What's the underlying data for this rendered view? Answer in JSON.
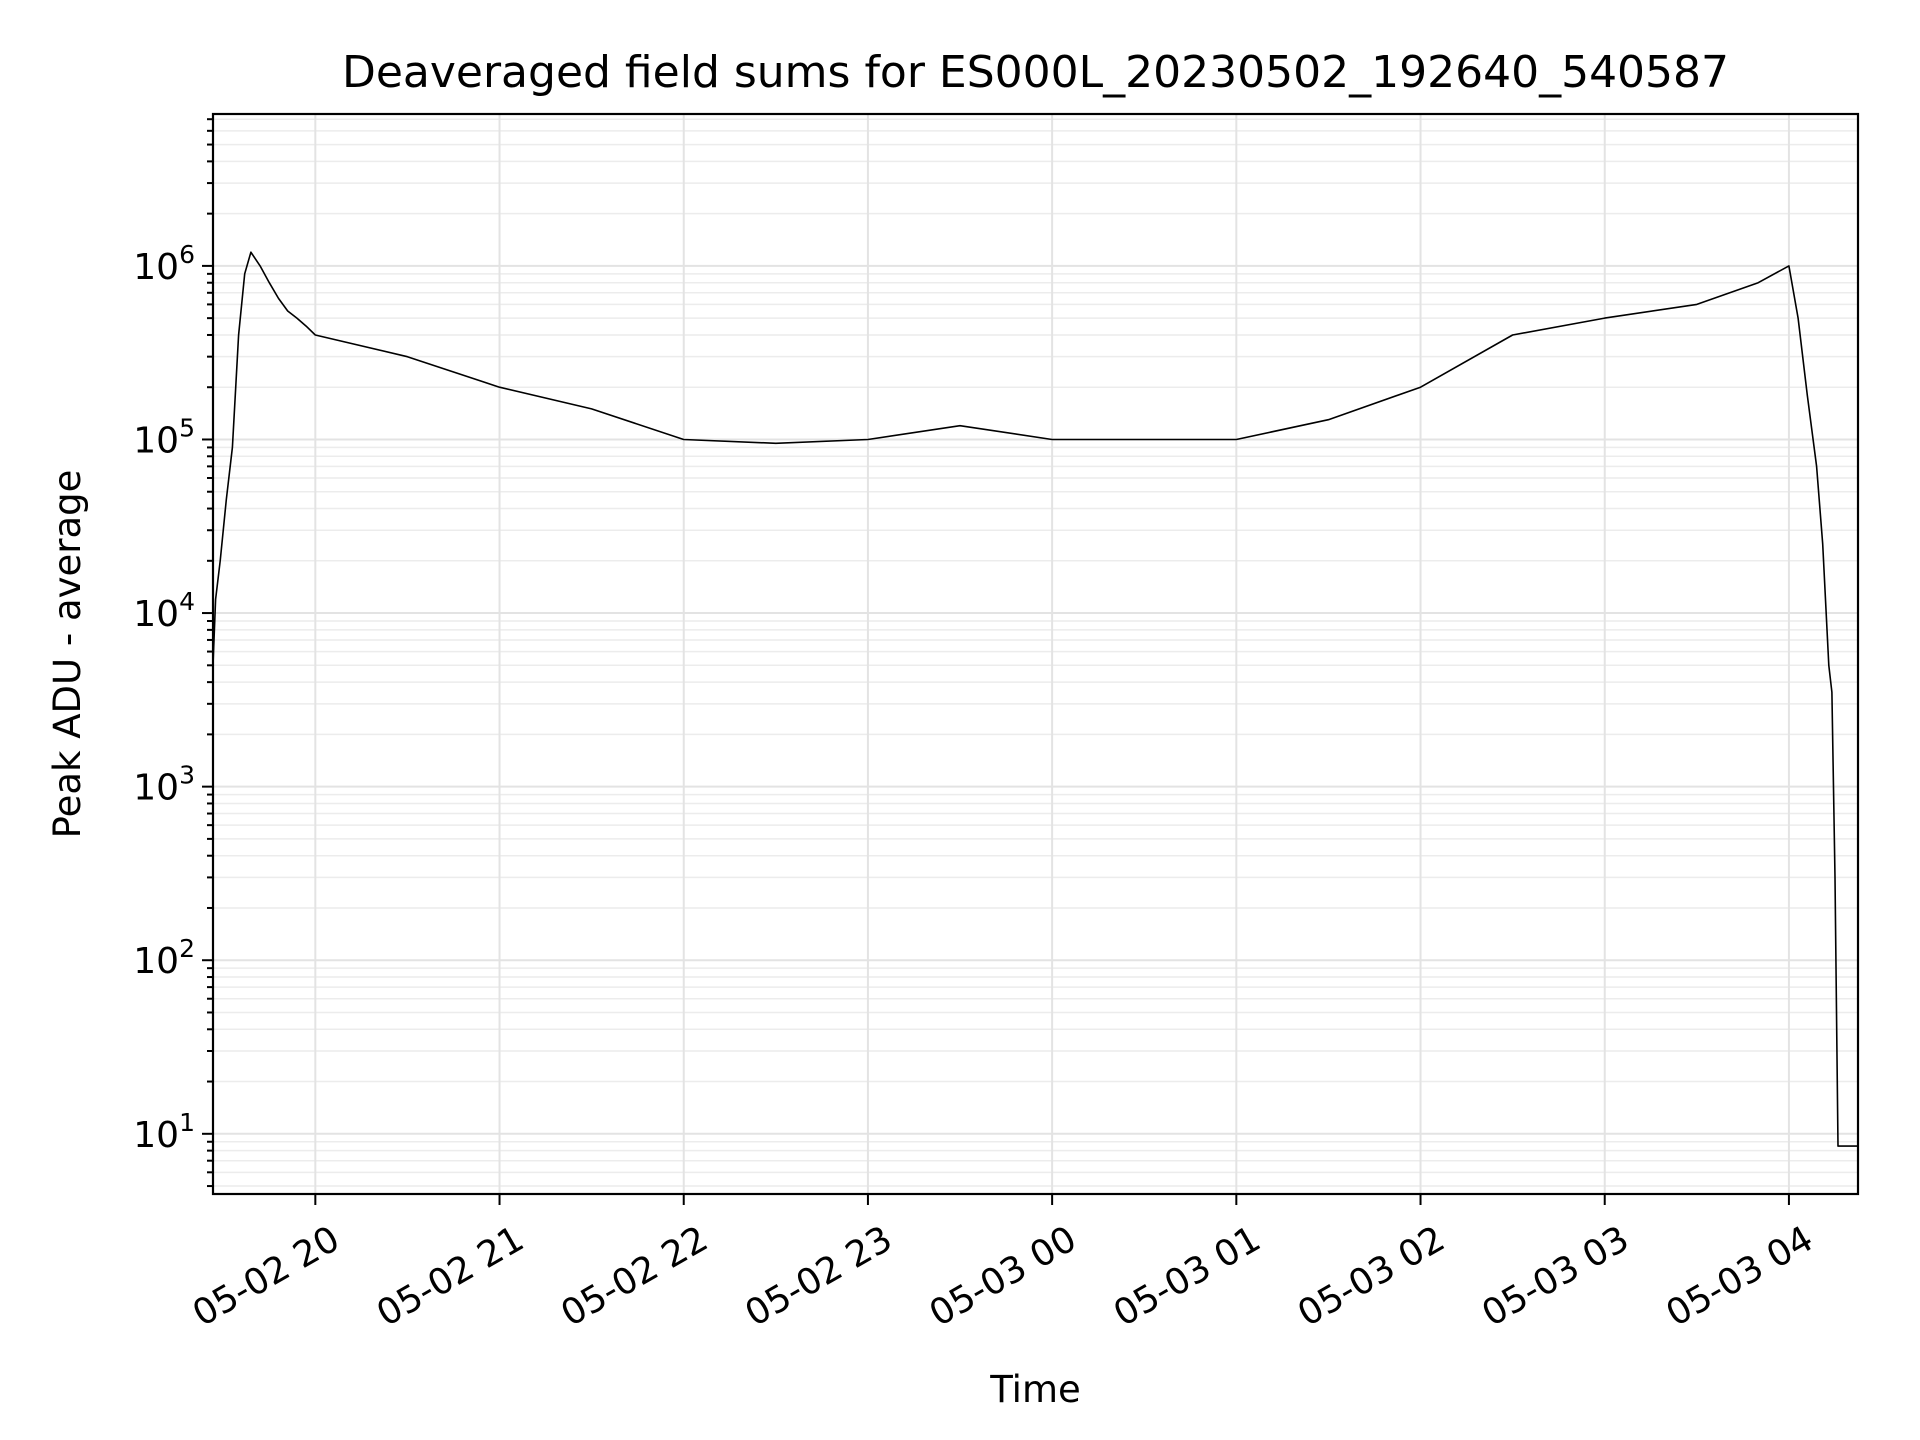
{
  "chart_data": {
    "type": "line",
    "title": "Deaveraged field sums for ES000L_20230502_192640_540587",
    "xlabel": "Time",
    "ylabel": "Peak ADU - average",
    "yscale": "log",
    "ylim": [
      4.5,
      7500000
    ],
    "xlim": [
      "2023-05-02 19:26:40",
      "2023-05-03 04:22:30"
    ],
    "x_ticks": [
      {
        "value": "2023-05-02 20:00",
        "label": "05-02 20"
      },
      {
        "value": "2023-05-02 21:00",
        "label": "05-02 21"
      },
      {
        "value": "2023-05-02 22:00",
        "label": "05-02 22"
      },
      {
        "value": "2023-05-02 23:00",
        "label": "05-02 23"
      },
      {
        "value": "2023-05-03 00:00",
        "label": "05-03 00"
      },
      {
        "value": "2023-05-03 01:00",
        "label": "05-03 01"
      },
      {
        "value": "2023-05-03 02:00",
        "label": "05-03 02"
      },
      {
        "value": "2023-05-03 03:00",
        "label": "05-03 03"
      },
      {
        "value": "2023-05-03 04:00",
        "label": "05-03 04"
      }
    ],
    "y_ticks": [
      {
        "value": 10,
        "base": "10",
        "exp": "1"
      },
      {
        "value": 100,
        "base": "10",
        "exp": "2"
      },
      {
        "value": 1000,
        "base": "10",
        "exp": "3"
      },
      {
        "value": 10000,
        "base": "10",
        "exp": "4"
      },
      {
        "value": 100000,
        "base": "10",
        "exp": "5"
      },
      {
        "value": 1000000,
        "base": "10",
        "exp": "6"
      }
    ],
    "grid": true,
    "line_color": "#000000",
    "series": [
      {
        "x": [
          "2023-05-02 19:26:40",
          "2023-05-02 19:27:30",
          "2023-05-02 19:29",
          "2023-05-02 19:31",
          "2023-05-02 19:33",
          "2023-05-02 19:35",
          "2023-05-02 19:37",
          "2023-05-02 19:39",
          "2023-05-02 19:42",
          "2023-05-02 19:45",
          "2023-05-02 19:48",
          "2023-05-02 19:51",
          "2023-05-02 19:54",
          "2023-05-02 19:57",
          "2023-05-02 20:00",
          "2023-05-02 20:30",
          "2023-05-02 21:00",
          "2023-05-02 21:30",
          "2023-05-02 22:00",
          "2023-05-02 22:30",
          "2023-05-02 23:00",
          "2023-05-02 23:30",
          "2023-05-03 00:00",
          "2023-05-03 00:30",
          "2023-05-03 01:00",
          "2023-05-03 01:30",
          "2023-05-03 02:00",
          "2023-05-03 02:30",
          "2023-05-03 03:00",
          "2023-05-03 03:30",
          "2023-05-03 03:50",
          "2023-05-03 04:00",
          "2023-05-03 04:03",
          "2023-05-03 04:06",
          "2023-05-03 04:09",
          "2023-05-03 04:11",
          "2023-05-03 04:13",
          "2023-05-03 04:14",
          "2023-05-03 04:15",
          "2023-05-03 04:16",
          "2023-05-03 04:22:30"
        ],
        "values": [
          5000,
          12000,
          20000,
          45000,
          90000,
          400000,
          900000,
          1200000,
          1000000,
          800000,
          650000,
          550000,
          500000,
          450000,
          400000,
          300000,
          200000,
          150000,
          100000,
          95000,
          100000,
          120000,
          100000,
          100000,
          100000,
          130000,
          200000,
          400000,
          500000,
          600000,
          800000,
          1000000,
          500000,
          180000,
          70000,
          25000,
          5000,
          3500,
          300,
          8.5,
          8.5
        ]
      }
    ]
  }
}
